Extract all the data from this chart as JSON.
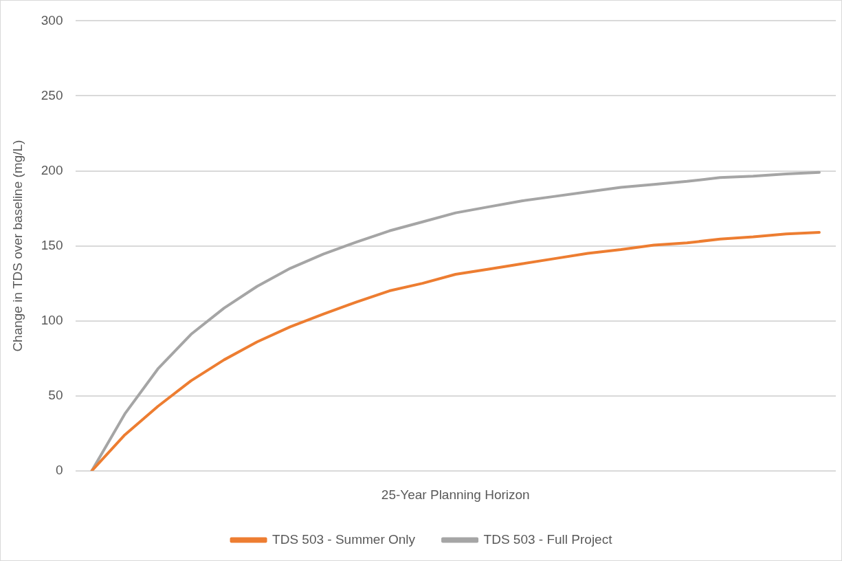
{
  "chart_data": {
    "type": "line",
    "xlabel": "25-Year Planning Horizon",
    "ylabel": "Change in TDS over baseline (mg/L)",
    "categories": [
      null,
      null,
      null,
      null,
      null,
      null,
      null,
      null,
      null,
      null,
      null,
      null,
      null,
      null,
      null,
      null,
      null,
      null,
      null,
      null,
      null,
      null,
      null
    ],
    "series": [
      {
        "name": "TDS 503 - Summer Only",
        "color": "#ed7d31",
        "values": [
          0,
          24,
          43,
          60,
          74,
          86,
          96,
          104.5,
          112.5,
          120,
          125,
          131,
          134.5,
          138,
          141.5,
          145,
          147.5,
          150.5,
          152,
          154.5,
          156,
          158,
          159
        ]
      },
      {
        "name": "TDS 503 - Full Project",
        "color": "#a5a5a5",
        "values": [
          0,
          38,
          68,
          91,
          108.5,
          123,
          135,
          144.5,
          152.5,
          160,
          166,
          172,
          176,
          180,
          183,
          186,
          189,
          191,
          193,
          195.5,
          196.5,
          198,
          199
        ]
      }
    ],
    "ylim": [
      0,
      300
    ],
    "yticks": [
      0,
      50,
      100,
      150,
      200,
      250,
      300
    ],
    "grid": "y",
    "legend": "bottom",
    "marker": "none",
    "line_style": "solid"
  }
}
